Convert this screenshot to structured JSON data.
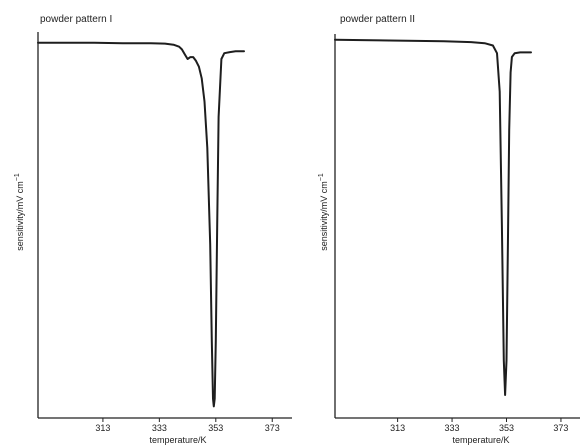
{
  "chart_data": [
    {
      "type": "line",
      "title": "powder pattern I",
      "xlabel": "temperature/K",
      "ylabel": "sensitivity/mV cm",
      "ylabel_superscript": "−1",
      "xlim": [
        290,
        380
      ],
      "ylim": [
        0,
        1
      ],
      "xticks": [
        313,
        333,
        353,
        373
      ],
      "grid": false,
      "legend": "none",
      "series": [
        {
          "x": [
            290,
            300,
            310,
            320,
            330,
            335,
            338,
            340,
            341,
            342,
            343,
            344,
            345,
            346,
            347,
            348,
            349,
            350,
            351,
            351.6,
            352,
            352.3,
            352.6,
            353,
            353.5,
            354,
            355,
            356,
            358,
            360,
            363
          ],
          "y": [
            0.972,
            0.972,
            0.972,
            0.971,
            0.971,
            0.97,
            0.967,
            0.962,
            0.955,
            0.942,
            0.93,
            0.935,
            0.935,
            0.925,
            0.91,
            0.88,
            0.82,
            0.7,
            0.45,
            0.2,
            0.05,
            0.03,
            0.05,
            0.2,
            0.5,
            0.78,
            0.93,
            0.945,
            0.948,
            0.95,
            0.95
          ]
        }
      ]
    },
    {
      "type": "line",
      "title": "powder pattern II",
      "xlabel": "temperature/K",
      "ylabel": "sensitivity/mV cm",
      "ylabel_superscript": "−1",
      "xlim": [
        290,
        380
      ],
      "ylim": [
        0,
        1
      ],
      "xticks": [
        313,
        333,
        353,
        373
      ],
      "grid": false,
      "legend": "none",
      "series": [
        {
          "x": [
            290,
            300,
            310,
            320,
            330,
            340,
            345,
            348,
            349.5,
            350.5,
            351.3,
            352,
            352.5,
            353,
            353.5,
            354,
            354.5,
            355,
            356,
            358,
            362
          ],
          "y": [
            0.985,
            0.984,
            0.983,
            0.982,
            0.981,
            0.979,
            0.976,
            0.97,
            0.95,
            0.85,
            0.5,
            0.15,
            0.06,
            0.15,
            0.45,
            0.75,
            0.9,
            0.94,
            0.95,
            0.952,
            0.952
          ]
        }
      ]
    }
  ]
}
